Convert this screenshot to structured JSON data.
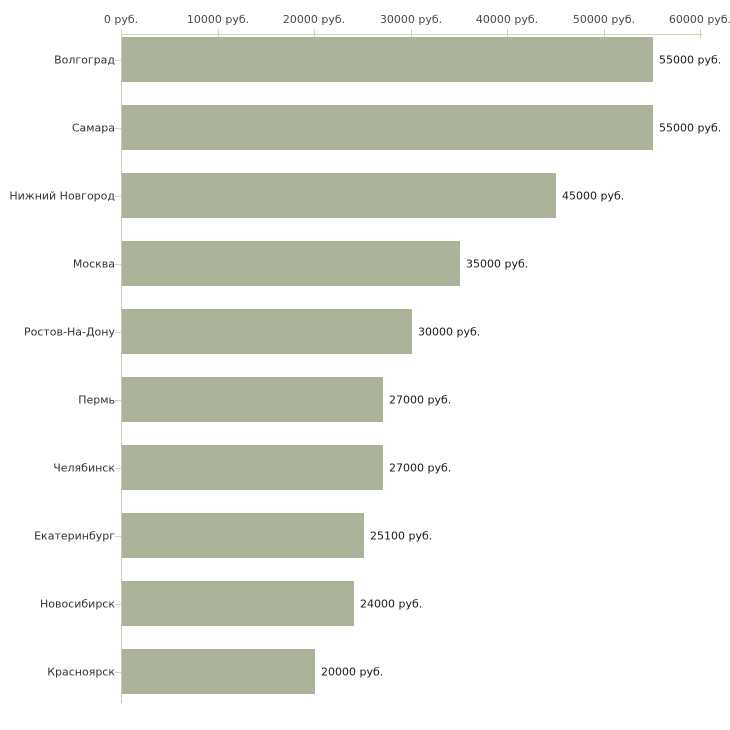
{
  "chart_data": {
    "type": "bar",
    "orientation": "horizontal",
    "title": "",
    "xlabel": "",
    "ylabel": "",
    "grid": false,
    "legend": false,
    "categories": [
      "Волгоград",
      "Самара",
      "Нижний Новгород",
      "Москва",
      "Ростов-На-Дону",
      "Пермь",
      "Челябинск",
      "Екатеринбург",
      "Новосибирск",
      "Красноярск"
    ],
    "values": [
      55000,
      55000,
      45000,
      35000,
      30000,
      27000,
      27000,
      25100,
      24000,
      20000
    ],
    "value_labels": [
      "55000 руб.",
      "55000 руб.",
      "45000 руб.",
      "35000 руб.",
      "30000 руб.",
      "27000 руб.",
      "27000 руб.",
      "25100 руб.",
      "24000 руб.",
      "20000 руб."
    ],
    "x_axis": {
      "position": "top",
      "min": 0,
      "max": 60000,
      "tick_step": 10000,
      "tick_values": [
        0,
        10000,
        20000,
        30000,
        40000,
        50000,
        60000
      ],
      "tick_labels": [
        "0 руб.",
        "10000 руб.",
        "20000 руб.",
        "30000 руб.",
        "40000 руб.",
        "50000 руб.",
        "60000 руб."
      ]
    },
    "colors": {
      "bar": "#abb49a",
      "axis_line": "#c9c7b6",
      "tick_mark": "#d6d2b4",
      "axis_text": "#4a4a4a",
      "category_text": "#333333",
      "value_text": "#1a1a1a",
      "background": "#ffffff"
    }
  }
}
